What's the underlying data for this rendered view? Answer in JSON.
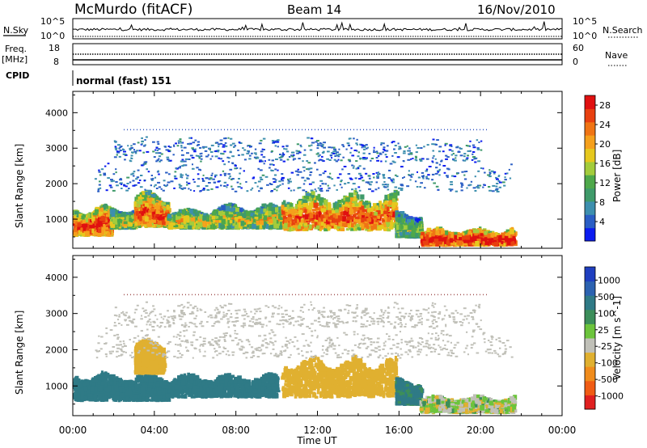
{
  "header": {
    "station": "McMurdo (fitACF)",
    "beam": "Beam 14",
    "date": "16/Nov/2010"
  },
  "summary": {
    "nsky_label": "N.Sky",
    "nsky_ticks": [
      "10^5",
      "10^0"
    ],
    "nsearch_label": "N.Search",
    "nsearch_ticks": [
      "10^5",
      "10^0"
    ],
    "freq_label": "Freq.",
    "freq_unit": "[MHz]",
    "freq_ticks": [
      "18",
      "8"
    ],
    "nave_label": "Nave",
    "nave_ticks": [
      "60",
      "0"
    ],
    "cpid_label": "CPID",
    "cpid_value": "normal (fast) 151"
  },
  "chart_data": [
    {
      "type": "heatmap",
      "title": "",
      "xlabel": "Time UT",
      "ylabel": "Slant Range [km]",
      "xlim": [
        "00:00",
        "24:00"
      ],
      "ylim": [
        180,
        4600
      ],
      "x_ticks": [
        "00:00",
        "04:00",
        "08:00",
        "12:00",
        "16:00",
        "20:00",
        "00:00"
      ],
      "y_ticks": [
        1000,
        2000,
        3000,
        4000
      ],
      "colorbar": {
        "label": "Power [dB]",
        "ticks": [
          "4",
          "8",
          "12",
          "16",
          "20",
          "24",
          "28"
        ],
        "colors": [
          "#0b1cf0",
          "#2a5ec4",
          "#3d8fae",
          "#3f9a6a",
          "#4ea84a",
          "#a3cc3c",
          "#e6c81e",
          "#f5a01c",
          "#f07414",
          "#e84010",
          "#e01010"
        ]
      },
      "regions": [
        {
          "t_start": 0.0,
          "t_end": 1.8,
          "r_low": 500,
          "r_high": 1300,
          "level": 0.8
        },
        {
          "t_start": 1.8,
          "t_end": 3.0,
          "r_low": 700,
          "r_high": 1250,
          "level": 0.5
        },
        {
          "t_start": 3.0,
          "t_end": 4.6,
          "r_low": 750,
          "r_high": 1700,
          "level": 0.75
        },
        {
          "t_start": 4.6,
          "t_end": 6.8,
          "r_low": 700,
          "r_high": 1200,
          "level": 0.55
        },
        {
          "t_start": 6.8,
          "t_end": 10.2,
          "r_low": 700,
          "r_high": 1350,
          "level": 0.5
        },
        {
          "t_start": 10.2,
          "t_end": 15.8,
          "r_low": 650,
          "r_high": 1700,
          "level": 0.75
        },
        {
          "t_start": 15.8,
          "t_end": 17.0,
          "r_low": 450,
          "r_high": 1150,
          "level": 0.4
        },
        {
          "t_start": 17.0,
          "t_end": 21.6,
          "r_low": 220,
          "r_high": 650,
          "level": 0.95
        },
        {
          "t_start": 1.0,
          "t_end": 21.5,
          "r_low": 1750,
          "r_high": 2600,
          "level": 0.2
        },
        {
          "t_start": 2.0,
          "t_end": 20.0,
          "r_low": 2600,
          "r_high": 3300,
          "level": 0.15
        }
      ]
    },
    {
      "type": "heatmap",
      "title": "",
      "xlabel": "Time UT",
      "ylabel": "Slant Range [km]",
      "xlim": [
        "00:00",
        "24:00"
      ],
      "ylim": [
        180,
        4600
      ],
      "x_ticks": [
        "00:00",
        "04:00",
        "08:00",
        "12:00",
        "16:00",
        "20:00",
        "00:00"
      ],
      "y_ticks": [
        1000,
        2000,
        3000,
        4000
      ],
      "colorbar": {
        "label": "Velocity [m s^-1]",
        "ticks": [
          "1000",
          "500",
          "100",
          "25",
          "-25",
          "-100",
          "-500",
          "-1000"
        ],
        "colors": [
          "#1f3fbf",
          "#2c62b0",
          "#2f7a86",
          "#3c8e5a",
          "#6cc43c",
          "#c0c0b8",
          "#e0b030",
          "#f08c1c",
          "#f05c14",
          "#e02020"
        ]
      },
      "regions": [
        {
          "t_start": 0.0,
          "t_end": 4.6,
          "r_low": 550,
          "r_high": 1300,
          "value": 300
        },
        {
          "t_start": 3.0,
          "t_end": 4.4,
          "r_low": 1300,
          "r_high": 2200,
          "value": -300
        },
        {
          "t_start": 4.6,
          "t_end": 10.0,
          "r_low": 650,
          "r_high": 1250,
          "value": 200
        },
        {
          "t_start": 10.2,
          "t_end": 15.8,
          "r_low": 650,
          "r_high": 1750,
          "value": -300
        },
        {
          "t_start": 15.8,
          "t_end": 17.0,
          "r_low": 450,
          "r_high": 1150,
          "value": 150
        },
        {
          "t_start": 17.0,
          "t_end": 21.6,
          "r_low": 220,
          "r_high": 650,
          "value": -50
        },
        {
          "t_start": 1.0,
          "t_end": 21.5,
          "r_low": 1750,
          "r_high": 2600,
          "value": 0
        },
        {
          "t_start": 2.0,
          "t_end": 20.0,
          "r_low": 2600,
          "r_high": 3300,
          "value": -30
        }
      ]
    }
  ]
}
